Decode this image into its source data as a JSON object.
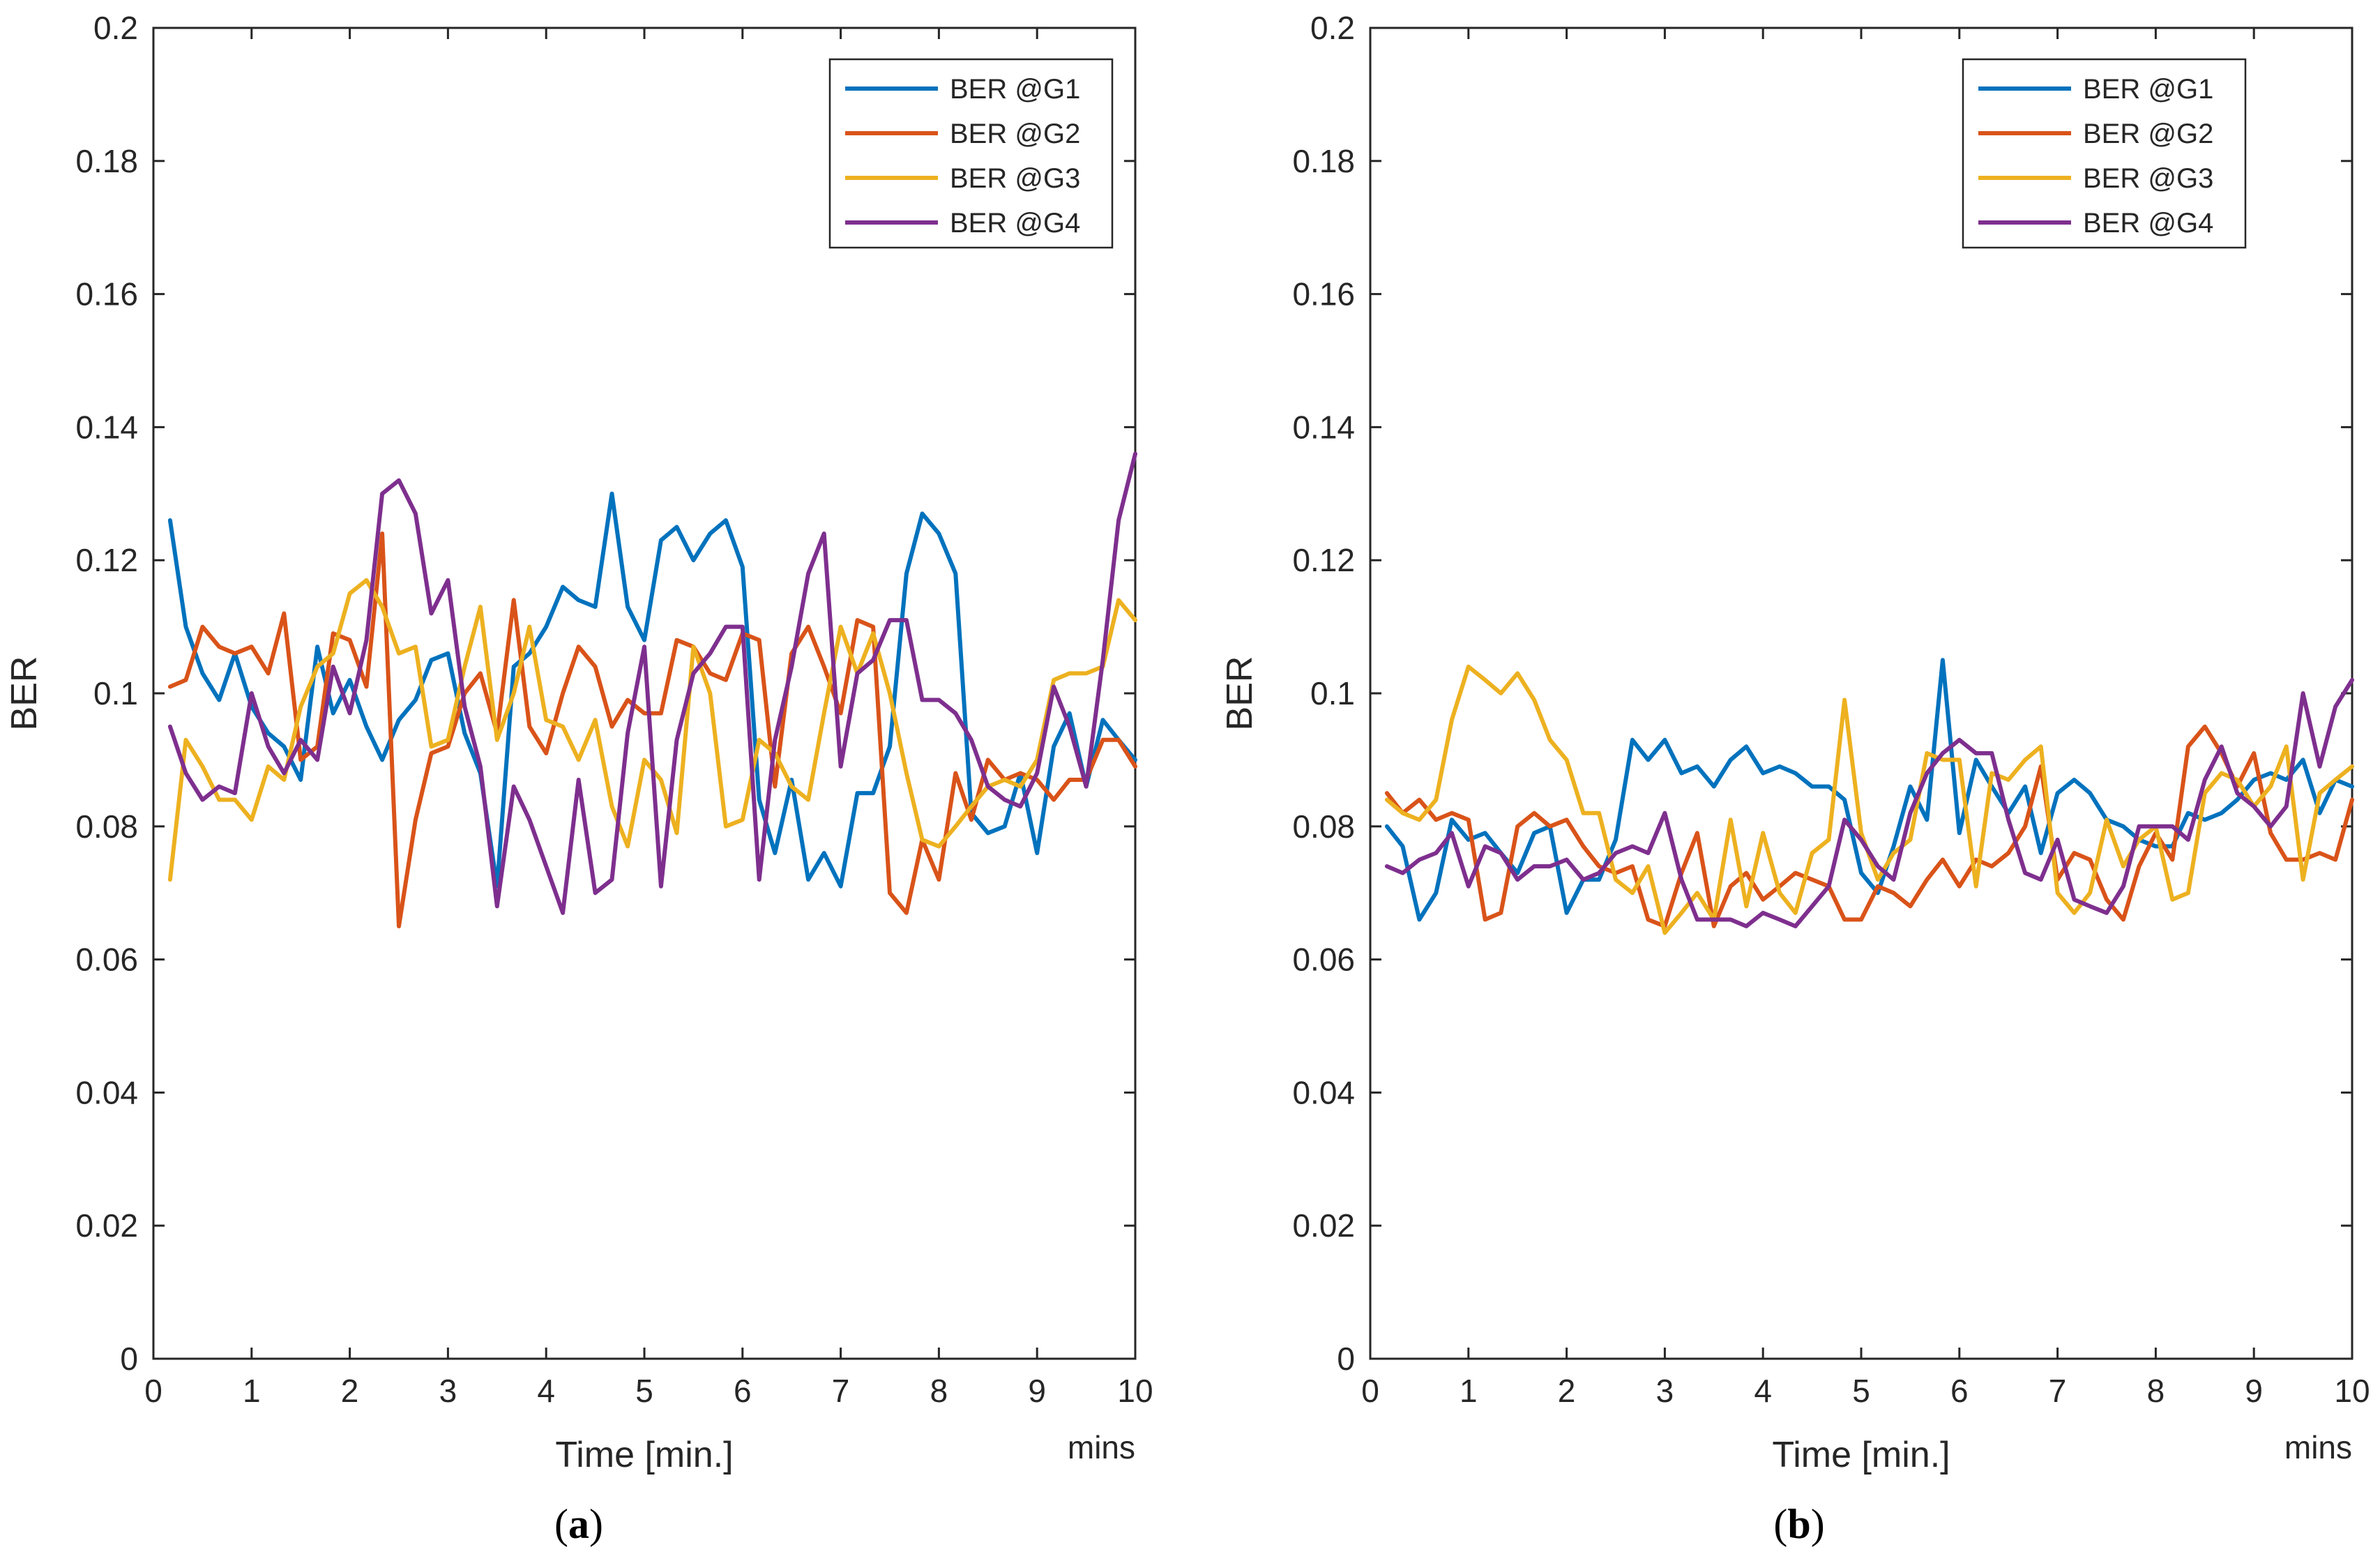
{
  "figure": {
    "colors": {
      "BER @G1": "#0072BD",
      "BER @G2": "#D95319",
      "BER @G3": "#EDB120",
      "BER @G4": "#7E2F8E"
    }
  },
  "chart_data": [
    {
      "type": "line",
      "panel_label": "a",
      "caption_open": "(",
      "caption_close": ")",
      "xlabel": "Time [min.]",
      "ylabel": "BER",
      "x_unit_label": "mins",
      "xlim": [
        0,
        10
      ],
      "ylim": [
        0,
        0.2
      ],
      "xticks": [
        0,
        1,
        2,
        3,
        4,
        5,
        6,
        7,
        8,
        9,
        10
      ],
      "xtick_labels": [
        "0",
        "1",
        "2",
        "3",
        "4",
        "5",
        "6",
        "7",
        "8",
        "9",
        "10"
      ],
      "yticks": [
        0,
        0.02,
        0.04,
        0.06,
        0.08,
        0.1,
        0.12,
        0.14,
        0.16,
        0.18,
        0.2
      ],
      "ytick_labels": [
        "0",
        "0.02",
        "0.04",
        "0.06",
        "0.08",
        "0.1",
        "0.12",
        "0.14",
        "0.16",
        "0.18",
        "0.2"
      ],
      "legend_position": "top-right",
      "x": [
        0.17,
        0.33,
        0.5,
        0.67,
        0.83,
        1.0,
        1.17,
        1.33,
        1.5,
        1.67,
        1.83,
        2.0,
        2.17,
        2.33,
        2.5,
        2.67,
        2.83,
        3.0,
        3.17,
        3.33,
        3.5,
        3.67,
        3.83,
        4.0,
        4.17,
        4.33,
        4.5,
        4.67,
        4.83,
        5.0,
        5.17,
        5.33,
        5.5,
        5.67,
        5.83,
        6.0,
        6.17,
        6.33,
        6.5,
        6.67,
        6.83,
        7.0,
        7.17,
        7.33,
        7.5,
        7.67,
        7.83,
        8.0,
        8.17,
        8.33,
        8.5,
        8.67,
        8.83,
        9.0,
        9.17,
        9.33,
        9.5,
        9.67,
        9.83,
        10.0
      ],
      "series": [
        {
          "name": "BER @G1",
          "values": [
            0.126,
            0.11,
            0.103,
            0.099,
            0.106,
            0.098,
            0.094,
            0.092,
            0.087,
            0.107,
            0.097,
            0.102,
            0.095,
            0.09,
            0.096,
            0.099,
            0.105,
            0.106,
            0.094,
            0.088,
            0.071,
            0.104,
            0.106,
            0.11,
            0.116,
            0.114,
            0.113,
            0.13,
            0.113,
            0.108,
            0.123,
            0.125,
            0.12,
            0.124,
            0.126,
            0.119,
            0.084,
            0.076,
            0.087,
            0.072,
            0.076,
            0.071,
            0.085,
            0.085,
            0.092,
            0.118,
            0.127,
            0.124,
            0.118,
            0.082,
            0.079,
            0.08,
            0.088,
            0.076,
            0.092,
            0.097,
            0.086,
            0.096,
            0.093,
            0.09
          ]
        },
        {
          "name": "BER @G2",
          "values": [
            0.101,
            0.102,
            0.11,
            0.107,
            0.106,
            0.107,
            0.103,
            0.112,
            0.09,
            0.092,
            0.109,
            0.108,
            0.101,
            0.124,
            0.065,
            0.081,
            0.091,
            0.092,
            0.1,
            0.103,
            0.094,
            0.114,
            0.095,
            0.091,
            0.1,
            0.107,
            0.104,
            0.095,
            0.099,
            0.097,
            0.097,
            0.108,
            0.107,
            0.103,
            0.102,
            0.109,
            0.108,
            0.086,
            0.106,
            0.11,
            0.104,
            0.097,
            0.111,
            0.11,
            0.07,
            0.067,
            0.078,
            0.072,
            0.088,
            0.081,
            0.09,
            0.087,
            0.088,
            0.087,
            0.084,
            0.087,
            0.087,
            0.093,
            0.093,
            0.089
          ]
        },
        {
          "name": "BER @G3",
          "values": [
            0.072,
            0.093,
            0.089,
            0.084,
            0.084,
            0.081,
            0.089,
            0.087,
            0.098,
            0.104,
            0.106,
            0.115,
            0.117,
            0.113,
            0.106,
            0.107,
            0.092,
            0.093,
            0.104,
            0.113,
            0.093,
            0.1,
            0.11,
            0.096,
            0.095,
            0.09,
            0.096,
            0.083,
            0.077,
            0.09,
            0.087,
            0.079,
            0.107,
            0.1,
            0.08,
            0.081,
            0.093,
            0.091,
            0.086,
            0.084,
            0.097,
            0.11,
            0.103,
            0.109,
            0.1,
            0.088,
            0.078,
            0.077,
            0.08,
            0.083,
            0.086,
            0.087,
            0.086,
            0.09,
            0.102,
            0.103,
            0.103,
            0.104,
            0.114,
            0.111
          ]
        },
        {
          "name": "BER @G4",
          "values": [
            0.095,
            0.088,
            0.084,
            0.086,
            0.085,
            0.1,
            0.092,
            0.088,
            0.093,
            0.09,
            0.104,
            0.097,
            0.108,
            0.13,
            0.132,
            0.127,
            0.112,
            0.117,
            0.098,
            0.089,
            0.068,
            0.086,
            0.081,
            0.074,
            0.067,
            0.087,
            0.07,
            0.072,
            0.094,
            0.107,
            0.071,
            0.093,
            0.103,
            0.106,
            0.11,
            0.11,
            0.072,
            0.093,
            0.104,
            0.118,
            0.124,
            0.089,
            0.103,
            0.105,
            0.111,
            0.111,
            0.099,
            0.099,
            0.097,
            0.093,
            0.086,
            0.084,
            0.083,
            0.088,
            0.101,
            0.095,
            0.086,
            0.105,
            0.126,
            0.136
          ]
        }
      ]
    },
    {
      "type": "line",
      "panel_label": "b",
      "caption_open": "(",
      "caption_close": ")",
      "xlabel": "Time [min.]",
      "ylabel": "BER",
      "x_unit_label": "mins",
      "xlim": [
        0,
        10
      ],
      "ylim": [
        0,
        0.2
      ],
      "xticks": [
        0,
        1,
        2,
        3,
        4,
        5,
        6,
        7,
        8,
        9,
        10
      ],
      "xtick_labels": [
        "0",
        "1",
        "2",
        "3",
        "4",
        "5",
        "6",
        "7",
        "8",
        "9",
        "10"
      ],
      "yticks": [
        0,
        0.02,
        0.04,
        0.06,
        0.08,
        0.1,
        0.12,
        0.14,
        0.16,
        0.18,
        0.2
      ],
      "ytick_labels": [
        "0",
        "0.02",
        "0.04",
        "0.06",
        "0.08",
        "0.1",
        "0.12",
        "0.14",
        "0.16",
        "0.18",
        "0.2"
      ],
      "legend_position": "top-right",
      "x": [
        0.17,
        0.33,
        0.5,
        0.67,
        0.83,
        1.0,
        1.17,
        1.33,
        1.5,
        1.67,
        1.83,
        2.0,
        2.17,
        2.33,
        2.5,
        2.67,
        2.83,
        3.0,
        3.17,
        3.33,
        3.5,
        3.67,
        3.83,
        4.0,
        4.17,
        4.33,
        4.5,
        4.67,
        4.83,
        5.0,
        5.17,
        5.33,
        5.5,
        5.67,
        5.83,
        6.0,
        6.17,
        6.33,
        6.5,
        6.67,
        6.83,
        7.0,
        7.17,
        7.33,
        7.5,
        7.67,
        7.83,
        8.0,
        8.17,
        8.33,
        8.5,
        8.67,
        8.83,
        9.0,
        9.17,
        9.33,
        9.5,
        9.67,
        9.83,
        10.0
      ],
      "series": [
        {
          "name": "BER @G1",
          "values": [
            0.08,
            0.077,
            0.066,
            0.07,
            0.081,
            0.078,
            0.079,
            0.076,
            0.073,
            0.079,
            0.08,
            0.067,
            0.072,
            0.072,
            0.078,
            0.093,
            0.09,
            0.093,
            0.088,
            0.089,
            0.086,
            0.09,
            0.092,
            0.088,
            0.089,
            0.088,
            0.086,
            0.086,
            0.084,
            0.073,
            0.07,
            0.077,
            0.086,
            0.081,
            0.105,
            0.079,
            0.09,
            0.086,
            0.082,
            0.086,
            0.076,
            0.085,
            0.087,
            0.085,
            0.081,
            0.08,
            0.078,
            0.077,
            0.077,
            0.082,
            0.081,
            0.082,
            0.084,
            0.087,
            0.088,
            0.087,
            0.09,
            0.082,
            0.087,
            0.086
          ]
        },
        {
          "name": "BER @G2",
          "values": [
            0.085,
            0.082,
            0.084,
            0.081,
            0.082,
            0.081,
            0.066,
            0.067,
            0.08,
            0.082,
            0.08,
            0.081,
            0.077,
            0.074,
            0.073,
            0.074,
            0.066,
            0.065,
            0.073,
            0.079,
            0.065,
            0.071,
            0.073,
            0.069,
            0.071,
            0.073,
            0.072,
            0.071,
            0.066,
            0.066,
            0.071,
            0.07,
            0.068,
            0.072,
            0.075,
            0.071,
            0.075,
            0.074,
            0.076,
            0.08,
            0.089,
            0.072,
            0.076,
            0.075,
            0.069,
            0.066,
            0.074,
            0.079,
            0.075,
            0.092,
            0.095,
            0.091,
            0.086,
            0.091,
            0.079,
            0.075,
            0.075,
            0.076,
            0.075,
            0.084
          ]
        },
        {
          "name": "BER @G3",
          "values": [
            0.084,
            0.082,
            0.081,
            0.084,
            0.096,
            0.104,
            0.102,
            0.1,
            0.103,
            0.099,
            0.093,
            0.09,
            0.082,
            0.082,
            0.072,
            0.07,
            0.074,
            0.064,
            0.067,
            0.07,
            0.066,
            0.081,
            0.068,
            0.079,
            0.07,
            0.067,
            0.076,
            0.078,
            0.099,
            0.079,
            0.072,
            0.076,
            0.078,
            0.091,
            0.09,
            0.09,
            0.071,
            0.088,
            0.087,
            0.09,
            0.092,
            0.07,
            0.067,
            0.07,
            0.081,
            0.074,
            0.078,
            0.08,
            0.069,
            0.07,
            0.085,
            0.088,
            0.087,
            0.083,
            0.086,
            0.092,
            0.072,
            0.085,
            0.087,
            0.089
          ]
        },
        {
          "name": "BER @G4",
          "values": [
            0.074,
            0.073,
            0.075,
            0.076,
            0.079,
            0.071,
            0.077,
            0.076,
            0.072,
            0.074,
            0.074,
            0.075,
            0.072,
            0.073,
            0.076,
            0.077,
            0.076,
            0.082,
            0.072,
            0.066,
            0.066,
            0.066,
            0.065,
            0.067,
            0.066,
            0.065,
            0.068,
            0.071,
            0.081,
            0.078,
            0.074,
            0.072,
            0.082,
            0.088,
            0.091,
            0.093,
            0.091,
            0.091,
            0.081,
            0.073,
            0.072,
            0.078,
            0.069,
            0.068,
            0.067,
            0.071,
            0.08,
            0.08,
            0.08,
            0.078,
            0.087,
            0.092,
            0.085,
            0.083,
            0.08,
            0.083,
            0.1,
            0.089,
            0.098,
            0.102
          ]
        }
      ]
    }
  ]
}
